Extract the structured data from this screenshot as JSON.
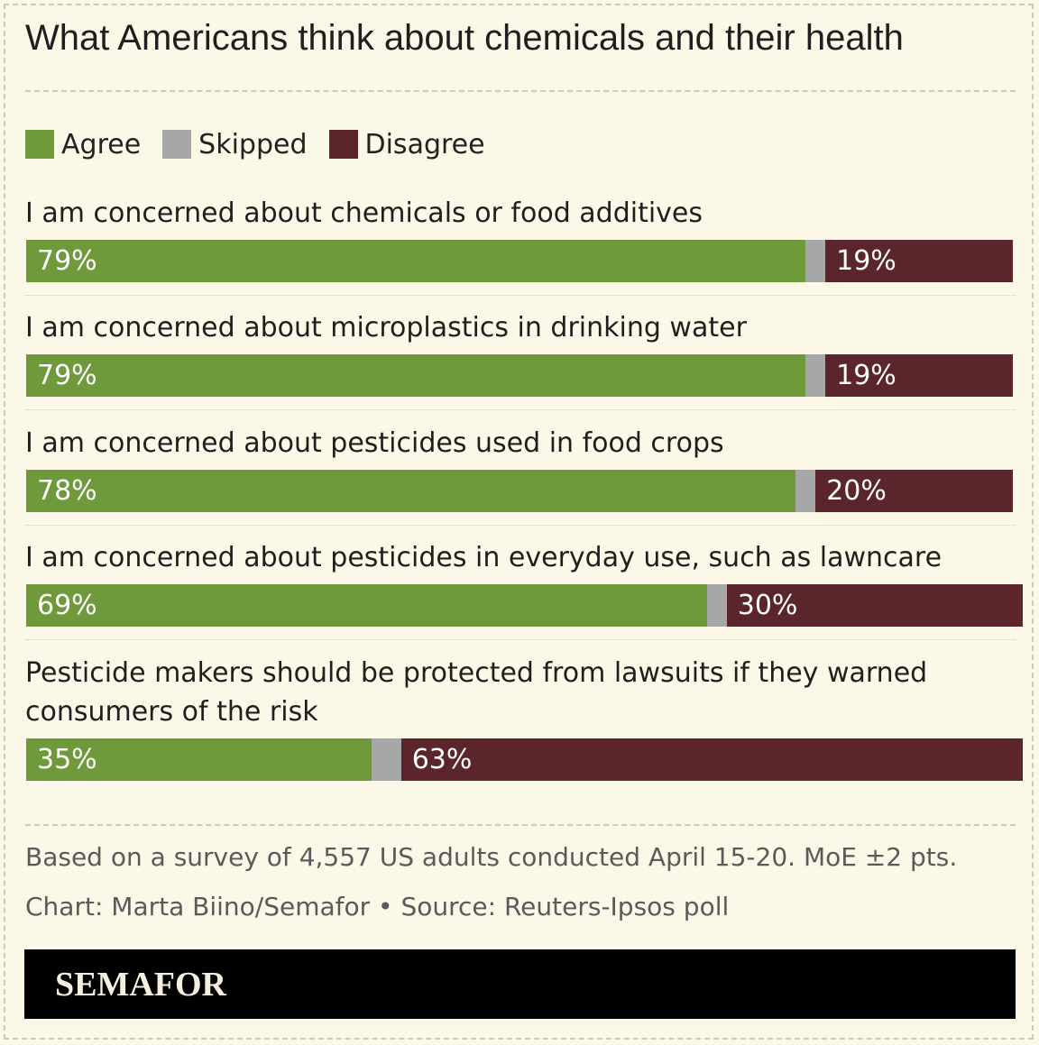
{
  "title": "What Americans think about chemicals and their health",
  "legend": [
    {
      "label": "Agree",
      "color": "#6f9a3c"
    },
    {
      "label": "Skipped",
      "color": "#a7a7a7"
    },
    {
      "label": "Disagree",
      "color": "#5b252c"
    }
  ],
  "chart_data": {
    "type": "bar",
    "orientation": "horizontal",
    "stacked": true,
    "categories": [
      "I am concerned about chemicals or food additives",
      "I am concerned about microplastics in drinking water",
      "I am concerned about pesticides used in food crops",
      "I am concerned about pesticides in everyday use, such as lawncare",
      "Pesticide makers should be protected from lawsuits if they warned consumers of the risk"
    ],
    "series": [
      {
        "name": "Agree",
        "values": [
          79,
          79,
          78,
          69,
          35
        ],
        "labels": [
          "79%",
          "79%",
          "78%",
          "69%",
          "35%"
        ]
      },
      {
        "name": "Skipped",
        "values": [
          2,
          2,
          2,
          2,
          3
        ],
        "labels": [
          "",
          "",
          "",
          "",
          ""
        ]
      },
      {
        "name": "Disagree",
        "values": [
          19,
          19,
          20,
          30,
          63
        ],
        "labels": [
          "19%",
          "19%",
          "20%",
          "30%",
          "63%"
        ]
      }
    ],
    "unit": "%",
    "xlim": [
      0,
      100
    ],
    "legend_position": "top-left"
  },
  "notes": {
    "survey": "Based on a survey of 4,557 US adults conducted April 15-20. MoE ±2 pts.",
    "credit": "Chart: Marta Biino/Semafor • Source: Reuters-Ipsos poll"
  },
  "brand": {
    "logo_text": "SEMAFOR"
  }
}
